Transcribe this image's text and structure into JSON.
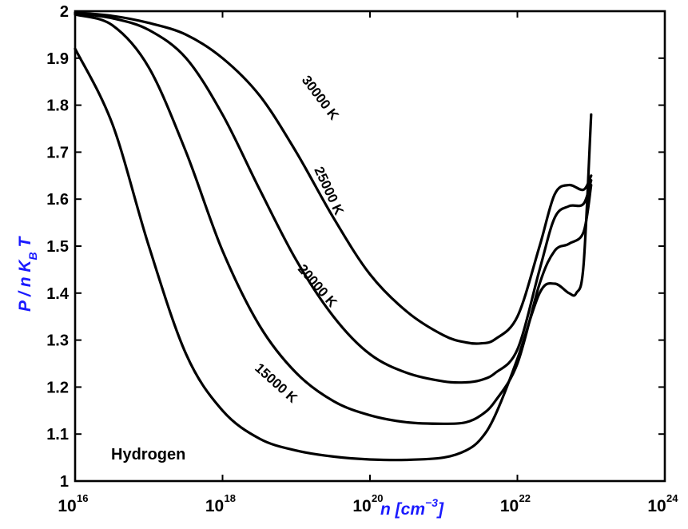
{
  "chart_data": {
    "type": "line",
    "title": "",
    "xlabel_main": "n [cm",
    "xlabel_exp": "−3",
    "xlabel_end": "]",
    "ylabel_main": "P / n K",
    "ylabel_sub": "B",
    "ylabel_end": " T",
    "x_scale": "log",
    "xlim": [
      1e+16,
      1e+24
    ],
    "ylim": [
      1,
      2
    ],
    "x_ticks": [
      {
        "base": "10",
        "exp": "16"
      },
      {
        "base": "10",
        "exp": "18"
      },
      {
        "base": "10",
        "exp": "20"
      },
      {
        "base": "10",
        "exp": "22"
      },
      {
        "base": "10",
        "exp": "24"
      }
    ],
    "y_ticks": [
      "1",
      "1.1",
      "1.2",
      "1.3",
      "1.4",
      "1.5",
      "1.6",
      "1.7",
      "1.8",
      "1.9",
      "2"
    ],
    "grid": false,
    "annotation": "Hydrogen",
    "series": [
      {
        "name": "30000 K",
        "x": [
          1e+16,
          3.2e+16,
          1e+17,
          3.2e+17,
          1e+18,
          3.2e+18,
          1e+19,
          3.2e+19,
          1e+20,
          3.2e+20,
          1e+21,
          2e+21,
          3.2e+21,
          5e+21,
          1e+22,
          2e+22,
          3.2e+22,
          5e+22,
          7.9e+22,
          1e+23
        ],
        "y": [
          1.997,
          1.99,
          1.975,
          1.95,
          1.9,
          1.82,
          1.7,
          1.56,
          1.44,
          1.36,
          1.31,
          1.295,
          1.293,
          1.302,
          1.35,
          1.5,
          1.61,
          1.63,
          1.62,
          1.65
        ]
      },
      {
        "name": "25000 K",
        "x": [
          1e+16,
          3.2e+16,
          1e+17,
          3.2e+17,
          1e+18,
          3.2e+18,
          1e+19,
          3.2e+19,
          1e+20,
          3.2e+20,
          1e+21,
          2e+21,
          3.2e+21,
          5e+21,
          1e+22,
          2e+22,
          3.2e+22,
          5e+22,
          7.9e+22,
          1e+23
        ],
        "y": [
          1.996,
          1.985,
          1.96,
          1.9,
          1.78,
          1.62,
          1.47,
          1.35,
          1.27,
          1.23,
          1.212,
          1.21,
          1.215,
          1.23,
          1.28,
          1.45,
          1.56,
          1.585,
          1.59,
          1.64
        ]
      },
      {
        "name": "20000 K",
        "x": [
          1e+16,
          3.2e+16,
          1e+17,
          3.2e+17,
          1e+18,
          3.2e+18,
          1e+19,
          3.2e+19,
          1e+20,
          3.2e+20,
          1e+21,
          2e+21,
          3.2e+21,
          5e+21,
          1e+22,
          2e+22,
          3.2e+22,
          5e+22,
          7.9e+22,
          1e+23
        ],
        "y": [
          1.993,
          1.97,
          1.88,
          1.7,
          1.49,
          1.33,
          1.23,
          1.17,
          1.14,
          1.125,
          1.122,
          1.125,
          1.14,
          1.17,
          1.25,
          1.42,
          1.49,
          1.505,
          1.53,
          1.63
        ]
      },
      {
        "name": "15000 K",
        "x": [
          1e+16,
          3.2e+16,
          1e+17,
          3.2e+17,
          1e+18,
          3.2e+18,
          1e+19,
          3.2e+19,
          1e+20,
          3.2e+20,
          1e+21,
          2e+21,
          3.2e+21,
          5e+21,
          1e+22,
          2e+22,
          3.2e+22,
          5e+22,
          6.3e+22,
          7.9e+22,
          1e+23
        ],
        "y": [
          1.92,
          1.76,
          1.5,
          1.27,
          1.15,
          1.09,
          1.065,
          1.052,
          1.046,
          1.045,
          1.05,
          1.065,
          1.09,
          1.14,
          1.26,
          1.4,
          1.42,
          1.4,
          1.4,
          1.46,
          1.78
        ]
      }
    ]
  }
}
